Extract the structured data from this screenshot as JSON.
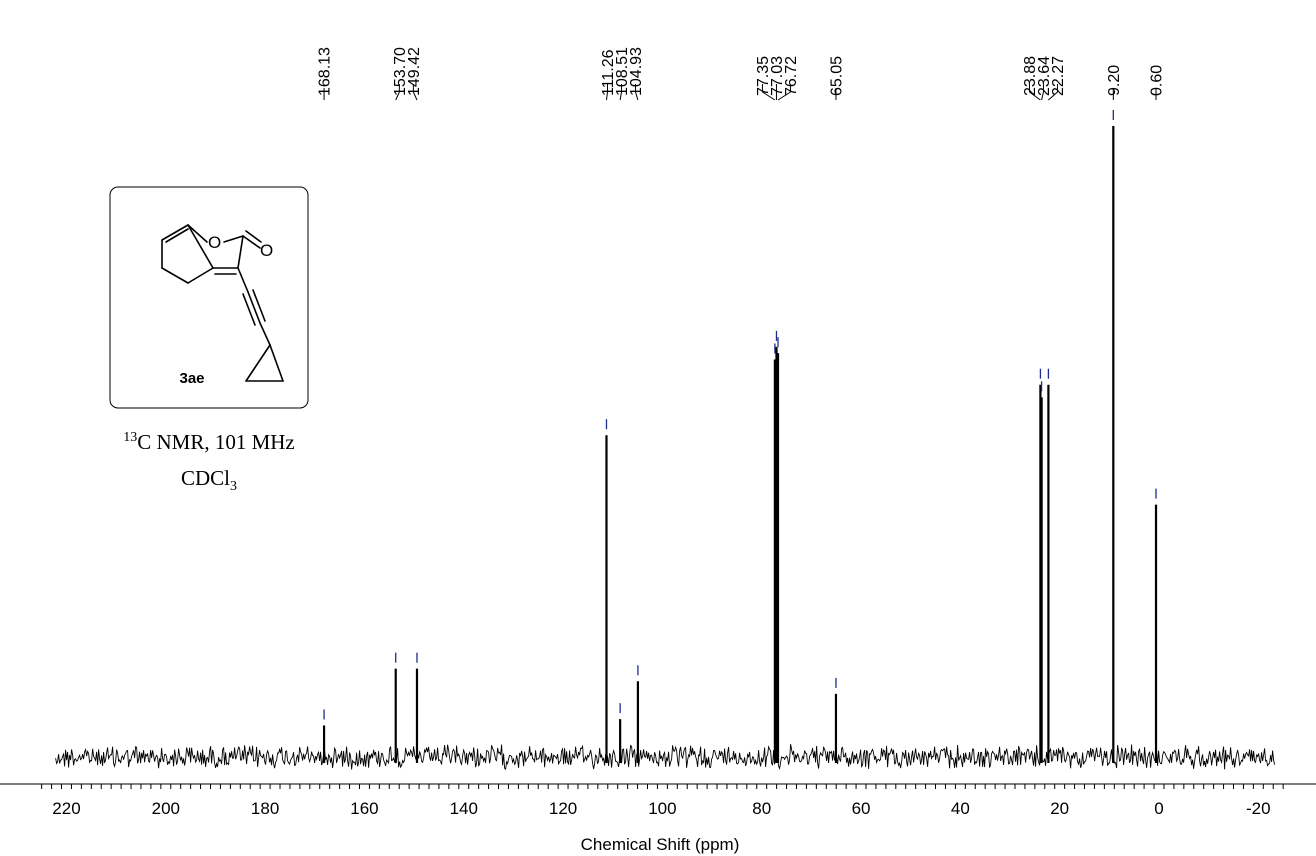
{
  "chart_data": {
    "type": "line",
    "xlabel": "Chemical Shift (ppm)",
    "ylabel": "",
    "xlim": [
      225,
      -25
    ],
    "x_ticks": [
      220,
      200,
      180,
      160,
      140,
      120,
      100,
      80,
      60,
      40,
      20,
      0,
      -20
    ],
    "x_tick_labels": [
      "220",
      "200",
      "180",
      "160",
      "140",
      "120",
      "100",
      "80",
      "60",
      "40",
      "20",
      "0",
      "-20"
    ],
    "grid": false,
    "peaks": [
      {
        "shift": 168.13,
        "label": "168.13",
        "intensity": 0.05
      },
      {
        "shift": 153.7,
        "label": "153.70",
        "intensity": 0.14
      },
      {
        "shift": 149.42,
        "label": "149.42",
        "intensity": 0.14
      },
      {
        "shift": 111.26,
        "label": "111.26",
        "intensity": 0.51
      },
      {
        "shift": 108.51,
        "label": "108.51",
        "intensity": 0.06
      },
      {
        "shift": 104.93,
        "label": "104.93",
        "intensity": 0.12
      },
      {
        "shift": 77.35,
        "label": "77.35",
        "intensity": 0.63
      },
      {
        "shift": 77.03,
        "label": "77.03",
        "intensity": 0.65
      },
      {
        "shift": 76.72,
        "label": "76.72",
        "intensity": 0.64
      },
      {
        "shift": 65.05,
        "label": "65.05",
        "intensity": 0.1
      },
      {
        "shift": 23.88,
        "label": "23.88",
        "intensity": 0.59
      },
      {
        "shift": 23.64,
        "label": "23.64",
        "intensity": 0.57
      },
      {
        "shift": 22.27,
        "label": "22.27",
        "intensity": 0.59
      },
      {
        "shift": 9.2,
        "label": "9.20",
        "intensity": 1.0
      },
      {
        "shift": 0.6,
        "label": "0.60",
        "intensity": 0.4
      }
    ],
    "label_groups": [
      [
        "168.13"
      ],
      [
        "153.70",
        "149.42"
      ],
      [
        "111.26",
        "108.51",
        "104.93"
      ],
      [
        "77.35",
        "77.03",
        "76.72"
      ],
      [
        "65.05"
      ],
      [
        "23.88",
        "23.64",
        "22.27"
      ],
      [
        "9.20"
      ],
      [
        "0.60"
      ]
    ],
    "colors": {
      "spectrum": "#000000",
      "peak_marker": "#1f2d8c",
      "label": "#000000"
    }
  },
  "inset": {
    "compound_label": "3ae",
    "atom_labels": {
      "ring_oxygen": "O",
      "carbonyl_oxygen": "O"
    }
  },
  "caption": {
    "nucleus_mass": "13",
    "nucleus_rest": "C NMR, 101 MHz",
    "solvent_main": "CDCl",
    "solvent_sub": "3"
  }
}
